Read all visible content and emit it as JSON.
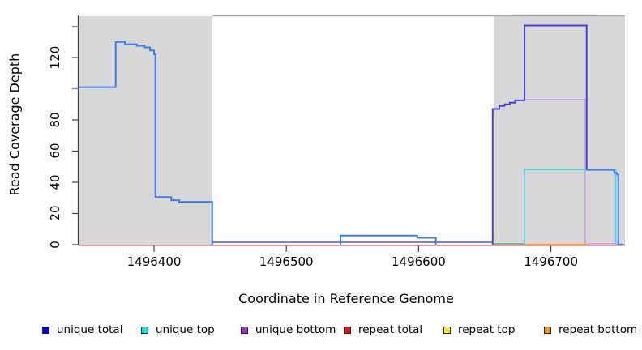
{
  "figure": {
    "xlabel": "Coordinate in Reference Genome",
    "ylabel": "Read Coverage Depth"
  },
  "chart_data": {
    "type": "line",
    "title": "",
    "xlabel": "Coordinate in Reference Genome",
    "ylabel": "Read Coverage Depth",
    "xlim": [
      1496343,
      1496756
    ],
    "ylim": [
      0,
      147
    ],
    "grid": false,
    "legend_position": "bottom-horizontal",
    "x_ticks": [
      1496400,
      1496500,
      1496600,
      1496700
    ],
    "x_tick_labels": [
      "1496400",
      "1496500",
      "1496600",
      "1496700"
    ],
    "y_ticks": [
      0,
      20,
      40,
      60,
      80,
      100,
      120,
      140
    ],
    "y_tick_labels": [
      "0",
      "20",
      "40",
      "60",
      "80",
      "",
      "120",
      ""
    ],
    "shaded_regions": [
      {
        "name": "left-gray-region",
        "x_start": 1496343,
        "x_end": 1496444,
        "color": "#d8d8d8"
      },
      {
        "name": "right-gray-region",
        "x_start": 1496657,
        "x_end": 1496756,
        "color": "#d8d8d8"
      }
    ],
    "legend": [
      {
        "label": "unique total",
        "color": "#0000ee"
      },
      {
        "label": "unique top",
        "color": "#00e5ee"
      },
      {
        "label": "unique bottom",
        "color": "#9b30d9"
      },
      {
        "label": "repeat total",
        "color": "#ee1111"
      },
      {
        "label": "repeat top",
        "color": "#f5f500"
      },
      {
        "label": "repeat bottom",
        "color": "#f59b00"
      }
    ],
    "series": [
      {
        "name": "repeat-total-baseline",
        "color": "#ee5868",
        "width": 1.3,
        "dy": 1,
        "points": [
          [
            1496343,
            0
          ],
          [
            1496756,
            0
          ]
        ]
      },
      {
        "name": "unique-zero-line-middle",
        "color": "#5a55da",
        "width": 1.6,
        "dy": -3,
        "points": [
          [
            1496444,
            0
          ],
          [
            1496656,
            0
          ]
        ]
      },
      {
        "name": "zero-line-green-segment",
        "color": "#55b878",
        "width": 1.6,
        "dy": -1,
        "points": [
          [
            1496656,
            0
          ],
          [
            1496680,
            0
          ]
        ]
      },
      {
        "name": "repeat-bottom-segment",
        "color": "#ff9518",
        "width": 1.8,
        "dy": 0,
        "points": [
          [
            1496680,
            0
          ],
          [
            1496727,
            0
          ]
        ]
      },
      {
        "name": "unique-bottom",
        "color": "#c7a0e6",
        "width": 1.6,
        "dy": -1,
        "points": [
          [
            1496680,
            92.5
          ],
          [
            1496726,
            92.5
          ],
          [
            1496726,
            0
          ],
          [
            1496755,
            0
          ]
        ]
      },
      {
        "name": "unique-top",
        "color": "#45dce8",
        "width": 1.6,
        "dy": 0,
        "points": [
          [
            1496680,
            0
          ],
          [
            1496680,
            48
          ],
          [
            1496749,
            48
          ],
          [
            1496749,
            0
          ]
        ]
      },
      {
        "name": "unique-total-right-box",
        "color": "#4b42dc",
        "width": 2,
        "dy": 0,
        "points": [
          [
            1496656,
            0
          ],
          [
            1496656,
            87
          ],
          [
            1496661,
            87
          ],
          [
            1496661,
            89
          ],
          [
            1496665,
            89
          ],
          [
            1496665,
            90
          ],
          [
            1496669,
            90
          ],
          [
            1496669,
            91
          ],
          [
            1496673,
            91
          ],
          [
            1496673,
            92.5
          ],
          [
            1496680,
            92.5
          ],
          [
            1496680,
            140.5
          ],
          [
            1496727,
            140.5
          ],
          [
            1496727,
            48
          ]
        ]
      },
      {
        "name": "unique-total-right-tail",
        "color": "#3c80ee",
        "width": 2,
        "dy": 0,
        "points": [
          [
            1496727,
            48
          ],
          [
            1496748,
            48
          ],
          [
            1496748,
            46
          ],
          [
            1496750,
            46
          ],
          [
            1496750,
            45
          ],
          [
            1496751,
            45
          ],
          [
            1496751,
            0
          ],
          [
            1496755,
            0
          ]
        ]
      },
      {
        "name": "unique-total-left",
        "color": "#3c80ee",
        "width": 2,
        "dy": 0,
        "points": [
          [
            1496343,
            101
          ],
          [
            1496371,
            101
          ],
          [
            1496371,
            130
          ],
          [
            1496378,
            130
          ],
          [
            1496378,
            128.5
          ],
          [
            1496387,
            128.5
          ],
          [
            1496387,
            127.5
          ],
          [
            1496393,
            127.5
          ],
          [
            1496393,
            126.5
          ],
          [
            1496397,
            126.5
          ],
          [
            1496397,
            124.5
          ],
          [
            1496400,
            124.5
          ],
          [
            1496400,
            122
          ],
          [
            1496401,
            122
          ],
          [
            1496401,
            30.5
          ],
          [
            1496413,
            30.5
          ],
          [
            1496413,
            28.5
          ],
          [
            1496419,
            28.5
          ],
          [
            1496419,
            27.5
          ],
          [
            1496444,
            27.5
          ],
          [
            1496444,
            0
          ]
        ]
      },
      {
        "name": "unique-total-middle-bump",
        "color": "#3c80ee",
        "width": 2,
        "dy": 0,
        "points": [
          [
            1496541,
            0
          ],
          [
            1496541,
            5.8
          ],
          [
            1496599,
            5.8
          ],
          [
            1496599,
            4.4
          ],
          [
            1496613,
            4.4
          ],
          [
            1496613,
            0
          ]
        ]
      }
    ]
  },
  "layout_colors": {
    "plot_border": "#a8a8a8",
    "axis": "#444444",
    "minor_tick": "#888888"
  }
}
